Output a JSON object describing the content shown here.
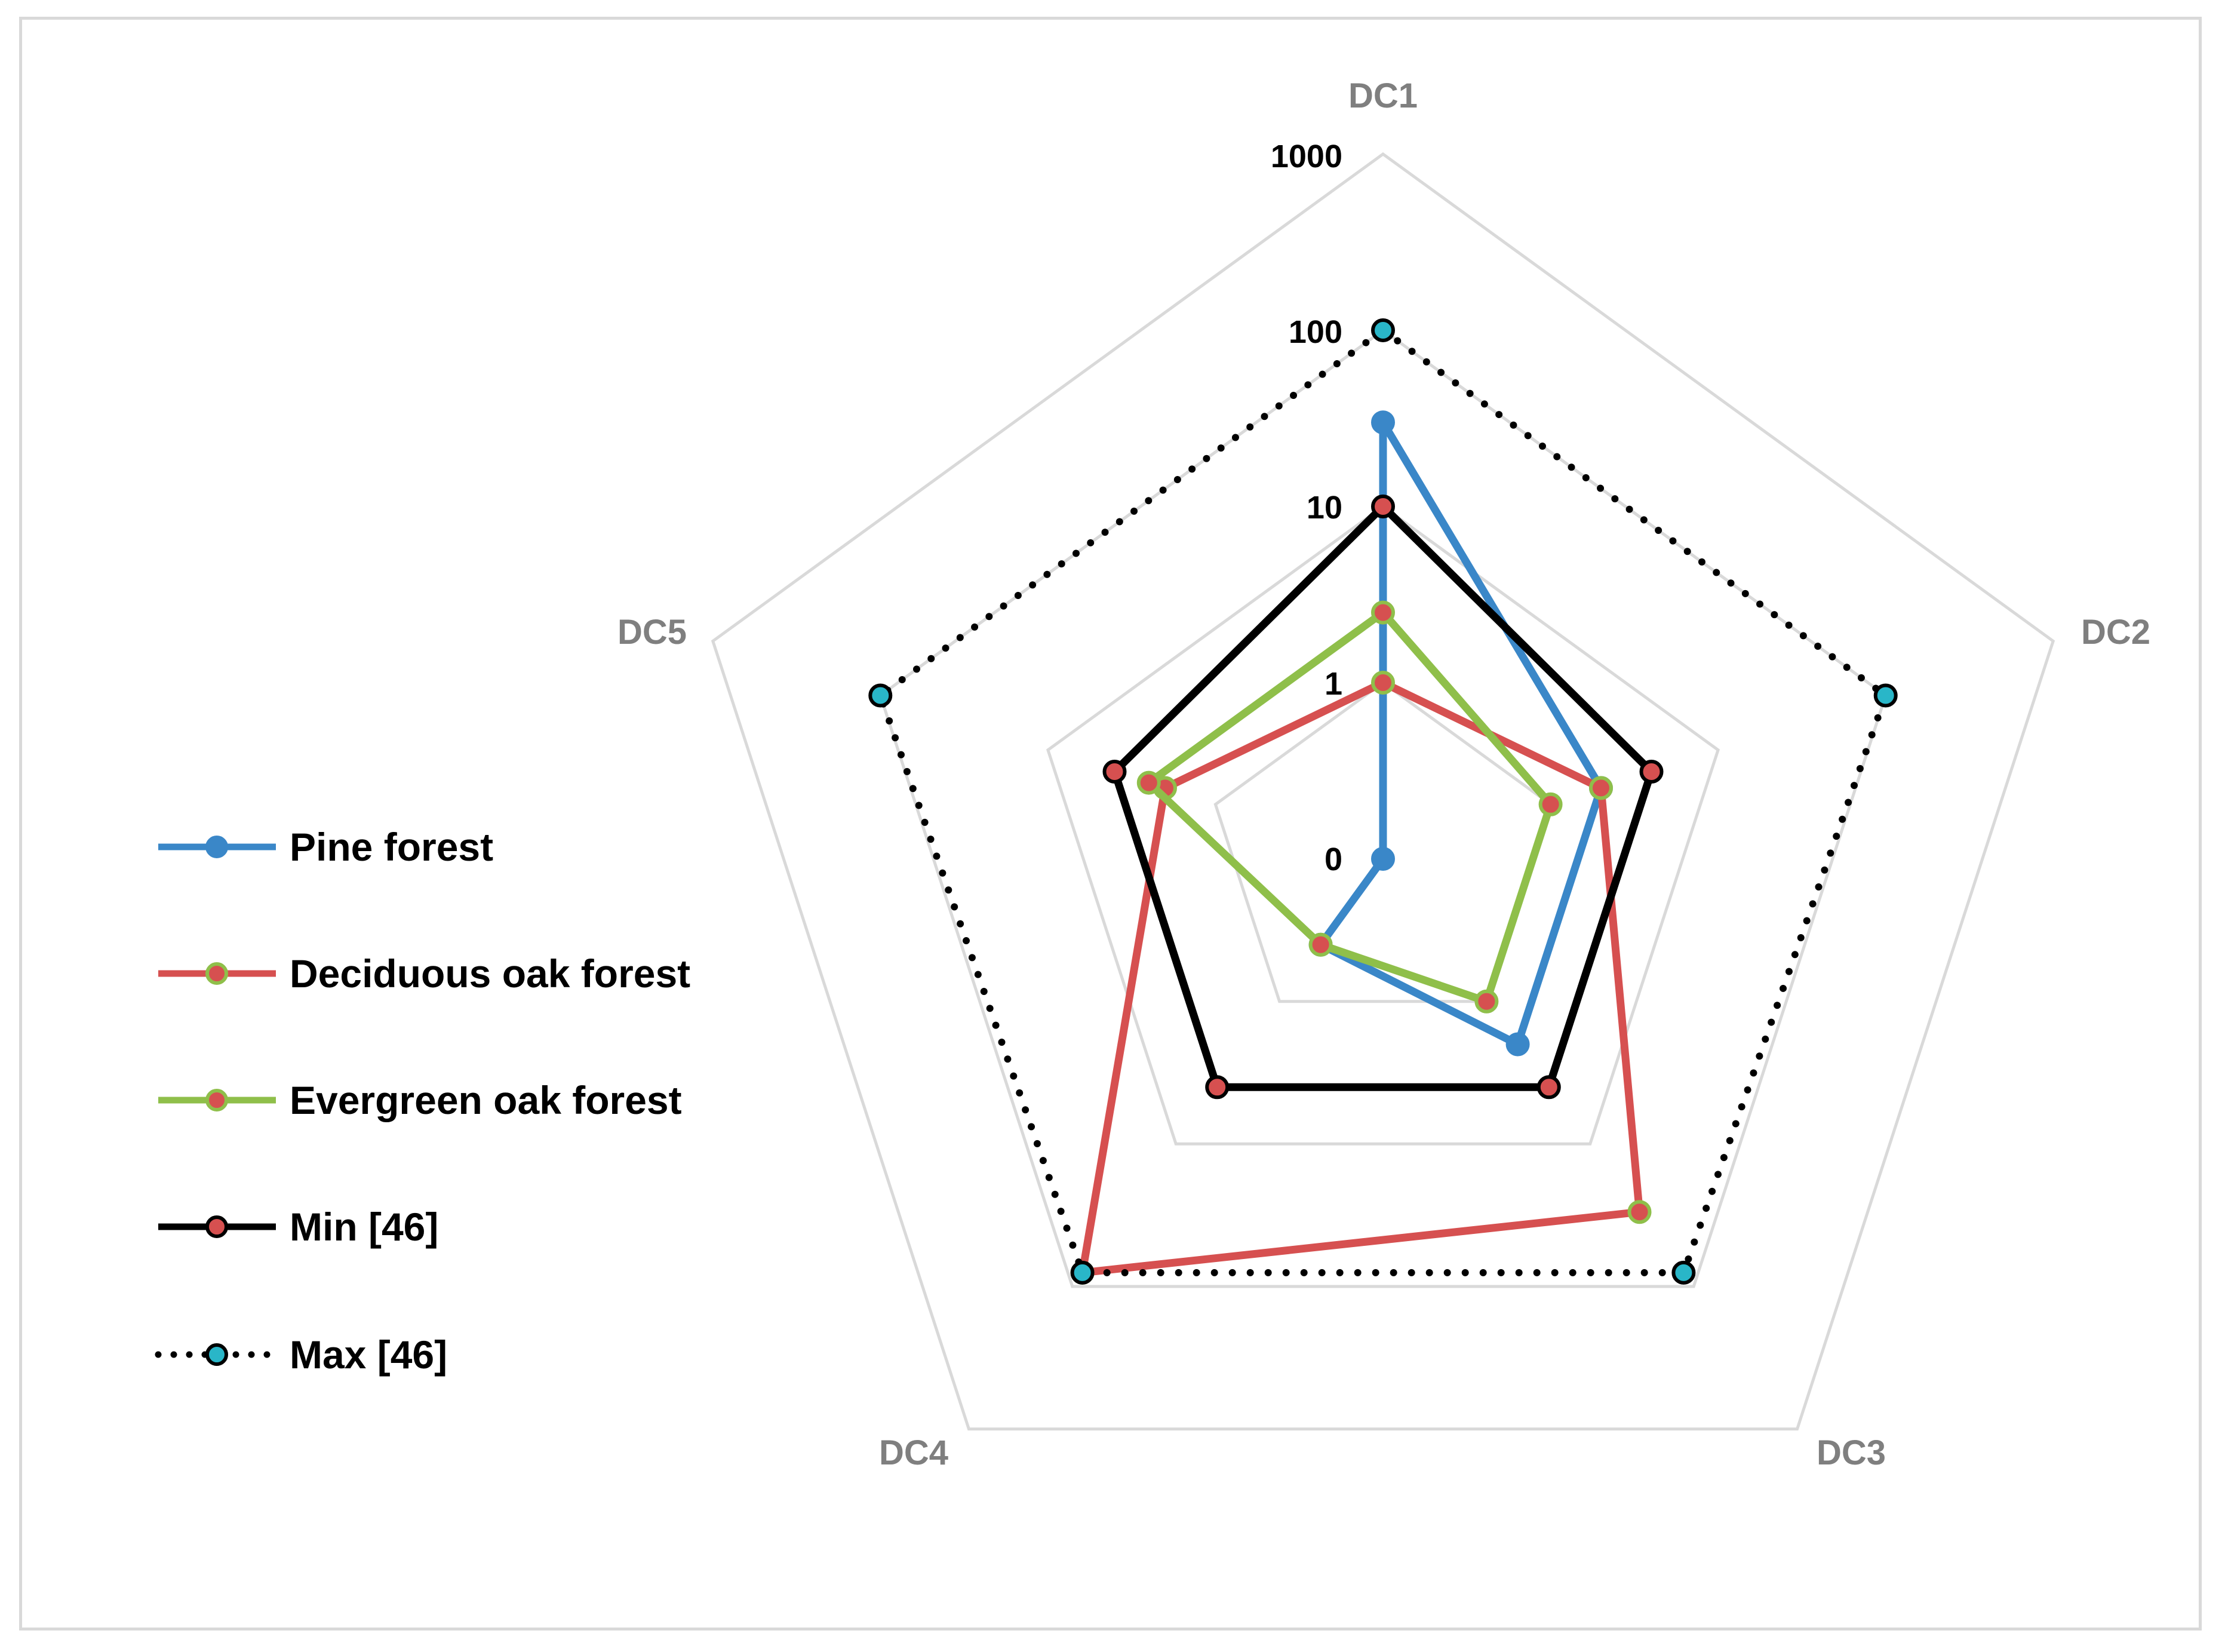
{
  "chart_data": {
    "type": "radar",
    "scale": "log10",
    "axes": [
      "DC1",
      "DC2",
      "DC3",
      "DC4",
      "DC5"
    ],
    "tick_labels": [
      "0",
      "1",
      "10",
      "100",
      "1000"
    ],
    "ticks": [
      0.1,
      1,
      10,
      100,
      1000
    ],
    "range": [
      0.1,
      1000
    ],
    "series": [
      {
        "name": "Pine forest",
        "values": [
          30,
          2,
          2,
          0.4,
          0.1
        ],
        "line_color": "#3a87c8",
        "marker_fill": "#3a87c8",
        "marker_edge": "#3a87c8",
        "line_style": "solid"
      },
      {
        "name": "Deciduous oak forest",
        "values": [
          1,
          2,
          30,
          80,
          2
        ],
        "line_color": "#d65050",
        "marker_fill": "#d65050",
        "marker_edge": "#8fbf4a",
        "line_style": "solid"
      },
      {
        "name": "Evergreen oak forest",
        "values": [
          2.5,
          1,
          1,
          0.4,
          2.5
        ],
        "line_color": "#8fbf4a",
        "marker_fill": "#d65050",
        "marker_edge": "#8fbf4a",
        "line_style": "solid"
      },
      {
        "name": "Min [46]",
        "values": [
          10,
          4,
          4,
          4,
          4
        ],
        "line_color": "#000000",
        "marker_fill": "#d65050",
        "marker_edge": "#000000",
        "line_style": "solid"
      },
      {
        "name": "Max [46]",
        "values": [
          100,
          100,
          80,
          80,
          100
        ],
        "line_color": "#000000",
        "marker_fill": "#29b6c8",
        "marker_edge": "#000000",
        "line_style": "dotted"
      }
    ],
    "legend_position": "left",
    "grid": true
  }
}
